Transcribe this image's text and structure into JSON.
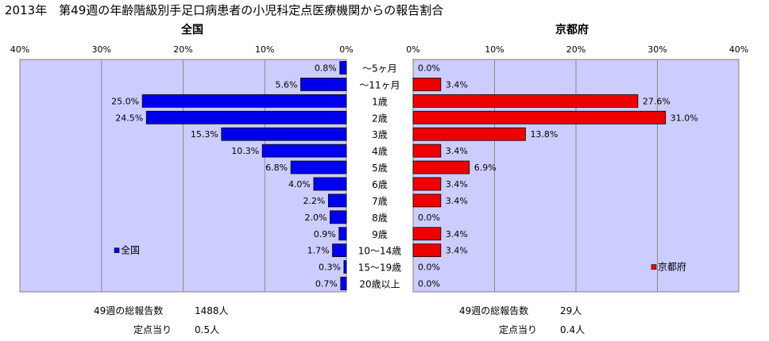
{
  "title": "2013年　第49週の年齢階級別手足口病患者の小児科定点医療機関からの報告割合",
  "chart_data": {
    "type": "bar",
    "orientation": "horizontal-butterfly",
    "categories": [
      "～5ヶ月",
      "～11ヶ月",
      "1歳",
      "2歳",
      "3歳",
      "4歳",
      "5歳",
      "6歳",
      "7歳",
      "8歳",
      "9歳",
      "10～14歳",
      "15～19歳",
      "20歳以上"
    ],
    "x_ticks": [
      "0%",
      "10%",
      "20%",
      "30%",
      "40%"
    ],
    "xlim": [
      0,
      40
    ],
    "grid": true,
    "panels": [
      {
        "key": "national",
        "title": "全国",
        "series": [
          {
            "name": "全国",
            "values": [
              0.8,
              5.6,
              25.0,
              24.5,
              15.3,
              10.3,
              6.8,
              4.0,
              2.2,
              2.0,
              0.9,
              1.7,
              0.3,
              0.7
            ]
          }
        ],
        "value_labels": [
          "0.8%",
          "5.6%",
          "25.0%",
          "24.5%",
          "15.3%",
          "10.3%",
          "6.8%",
          "4.0%",
          "2.2%",
          "2.0%",
          "0.9%",
          "1.7%",
          "0.3%",
          "0.7%"
        ],
        "direction": "left",
        "color": "#0000ee",
        "legend_position": "bottom-left",
        "footer": {
          "total_label": "49週の総報告数",
          "total_value": "1488人",
          "per_label": "定点当り",
          "per_value": "0.5人"
        }
      },
      {
        "key": "kyoto",
        "title": "京都府",
        "series": [
          {
            "name": "京都府",
            "values": [
              0.0,
              3.4,
              27.6,
              31.0,
              13.8,
              3.4,
              6.9,
              3.4,
              3.4,
              0.0,
              3.4,
              3.4,
              0.0,
              0.0
            ]
          }
        ],
        "value_labels": [
          "0.0%",
          "3.4%",
          "27.6%",
          "31.0%",
          "13.8%",
          "3.4%",
          "6.9%",
          "3.4%",
          "3.4%",
          "0.0%",
          "3.4%",
          "3.4%",
          "0.0%",
          "0.0%"
        ],
        "direction": "right",
        "color": "#ee0000",
        "legend_position": "bottom-right",
        "footer": {
          "total_label": "49週の総報告数",
          "total_value": "29人",
          "per_label": "定点当り",
          "per_value": "0.4人"
        }
      }
    ]
  },
  "colors": {
    "plot_bg": "#ccccff",
    "grid": "#8a8a8a",
    "border": "#808080"
  }
}
